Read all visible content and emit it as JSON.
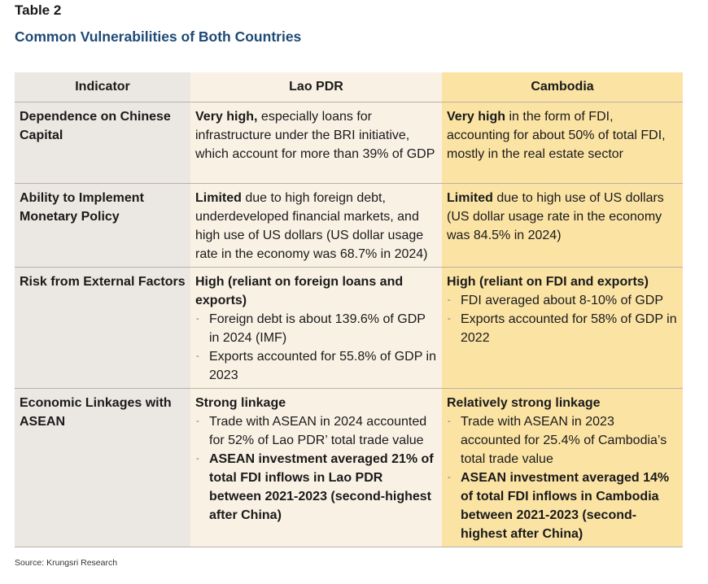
{
  "table_label": "Table 2",
  "title": "Common Vulnerabilities of Both Countries",
  "headers": {
    "indicator": "Indicator",
    "lao": "Lao PDR",
    "cambodia": "Cambodia"
  },
  "rows": [
    {
      "indicator": "Dependence on Chinese Capital",
      "lao": {
        "bold": "Very high,",
        "text": " especially loans for infrastructure under the BRI initiative, which account for more than 39% of GDP"
      },
      "cambodia": {
        "bold": "Very high",
        "text": " in the form of FDI, accounting for about 50% of total FDI, mostly in the real estate sector"
      }
    },
    {
      "indicator": "Ability to Implement Monetary Policy",
      "lao": {
        "bold": "Limited",
        "text": " due to high foreign debt, underdeveloped financial markets, and high use of US dollars (US dollar usage rate in the economy was 68.7% in 2024)"
      },
      "cambodia": {
        "bold": "Limited",
        "text": " due to high use of US dollars (US dollar usage rate in the economy was 84.5% in 2024)"
      }
    },
    {
      "indicator": "Risk from External Factors",
      "lao": {
        "heading": "High (reliant on foreign loans and exports)",
        "bullets": [
          "Foreign debt is about 139.6% of GDP in 2024 (IMF)",
          "Exports accounted for 55.8% of GDP in 2023"
        ]
      },
      "cambodia": {
        "heading": "High (reliant on FDI and exports)",
        "bullets": [
          "FDI averaged about 8-10% of GDP",
          "Exports accounted for 58% of GDP in 2022"
        ]
      }
    },
    {
      "indicator": "Economic Linkages with ASEAN",
      "lao": {
        "heading": "Strong linkage",
        "bullets": [
          "Trade with ASEAN in 2024 accounted for 52% of Lao PDR’ total trade value"
        ],
        "bold_bullet": "ASEAN investment averaged 21% of total FDI inflows in Lao PDR between 2021-2023 (second-highest after China)"
      },
      "cambodia": {
        "heading": "Relatively strong linkage",
        "bullets": [
          "Trade with ASEAN in 2023 accounted for 25.4% of Cambodia’s total trade value"
        ],
        "bold_bullet": "ASEAN investment averaged 14% of total FDI inflows in Cambodia between 2021-2023 (second-highest after China)"
      }
    }
  ],
  "bullet_glyph": "-",
  "source": "Source: Krungsri Research"
}
